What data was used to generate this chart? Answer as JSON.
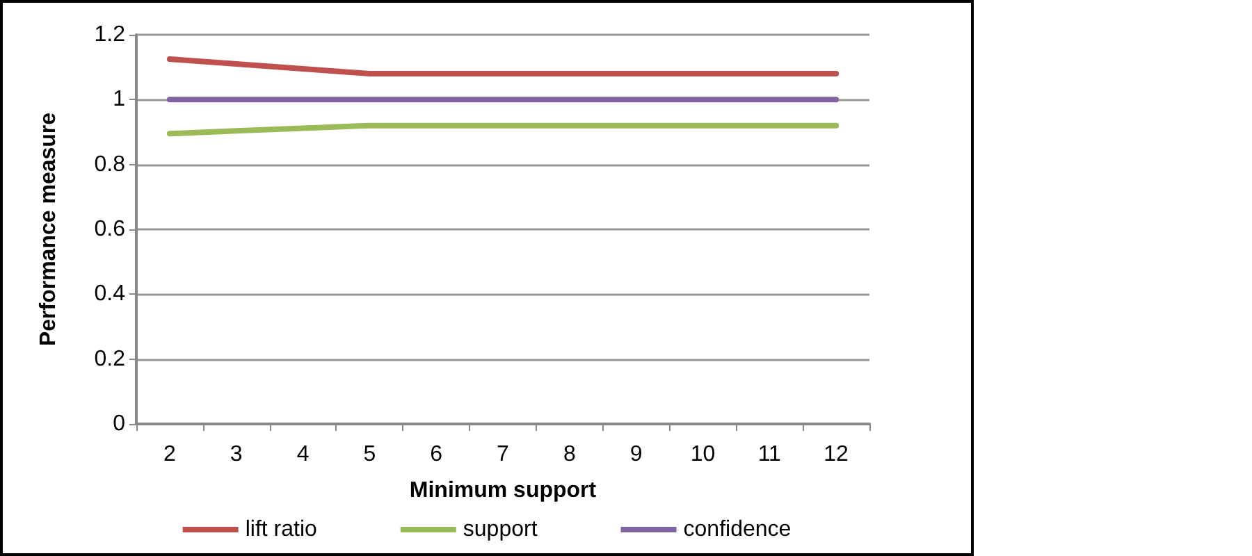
{
  "chart_data": {
    "type": "line",
    "xlabel": "Minimum support",
    "ylabel": "Performance measure",
    "categories": [
      "2",
      "3",
      "4",
      "5",
      "6",
      "7",
      "8",
      "9",
      "10",
      "11",
      "12"
    ],
    "series": [
      {
        "name": "lift ratio",
        "color": "#c0504d",
        "values": [
          1.125,
          1.11,
          1.095,
          1.08,
          1.08,
          1.08,
          1.08,
          1.08,
          1.08,
          1.08,
          1.08
        ]
      },
      {
        "name": "support",
        "color": "#9bbb59",
        "values": [
          0.895,
          0.904,
          0.912,
          0.92,
          0.92,
          0.92,
          0.92,
          0.92,
          0.92,
          0.92,
          0.92
        ]
      },
      {
        "name": "confidence",
        "color": "#8064a2",
        "values": [
          1,
          1,
          1,
          1,
          1,
          1,
          1,
          1,
          1,
          1,
          1
        ]
      }
    ],
    "ylim": [
      0,
      1.2
    ],
    "yticks": [
      0,
      0.2,
      0.4,
      0.6,
      0.8,
      1,
      1.2
    ],
    "grid": "y",
    "legend": "bottom",
    "marker": "none",
    "line_style": "solid"
  }
}
